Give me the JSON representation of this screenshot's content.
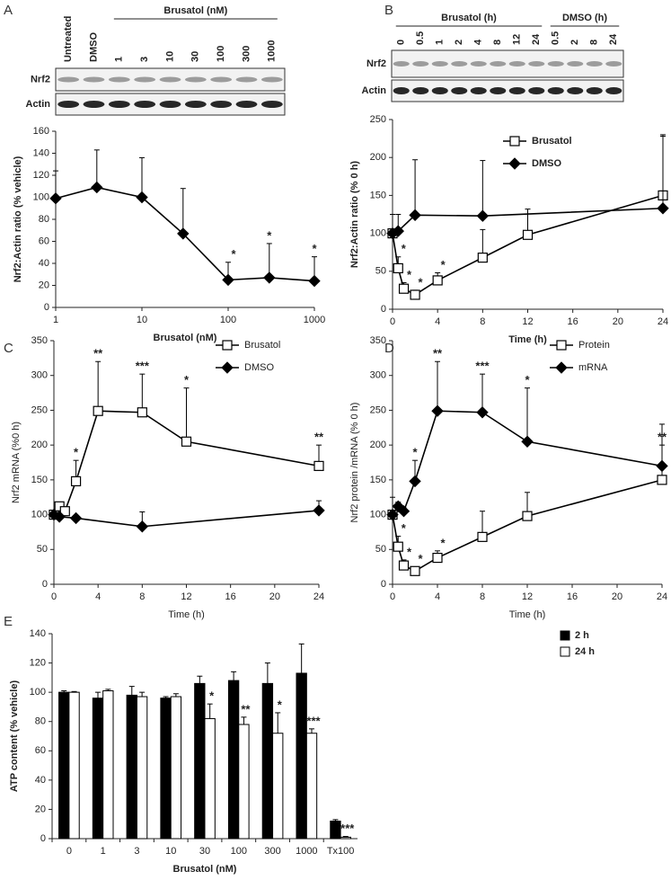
{
  "chart_data": [
    {
      "panel": "A",
      "type": "line",
      "blot": {
        "rows": [
          "Nrf2",
          "Actin"
        ],
        "lanes": [
          "Untreated",
          "DMSO"
        ],
        "lane_groups": [
          {
            "label": "Brusatol (nM)",
            "lanes": [
              "1",
              "3",
              "10",
              "30",
              "100",
              "300",
              "1000"
            ]
          }
        ]
      },
      "x_label": "Brusatol (nM)",
      "y_label": "Nrf2:Actin ratio (% vehicle)",
      "xscale": "log",
      "xlim": [
        1,
        1000
      ],
      "xticks": [
        1,
        10,
        100,
        1000
      ],
      "ylim": [
        0,
        160
      ],
      "yticks": [
        0,
        20,
        40,
        60,
        80,
        100,
        120,
        140,
        160
      ],
      "series": [
        {
          "color": "#000000",
          "marker": "diamond",
          "marker_fill": "#000000",
          "x": [
            1,
            3,
            10,
            30,
            100,
            300,
            1000
          ],
          "values": [
            99,
            109,
            100,
            67,
            25,
            27,
            24
          ],
          "errors": [
            25,
            34,
            36,
            41,
            16,
            31,
            22
          ],
          "significance": [
            null,
            null,
            null,
            null,
            "*",
            "*",
            "*"
          ]
        }
      ]
    },
    {
      "panel": "B",
      "type": "line",
      "blot": {
        "rows": [
          "Nrf2",
          "Actin"
        ],
        "lanes": [],
        "lane_groups": [
          {
            "label": "Brusatol (h)",
            "lanes": [
              "0",
              "0.5",
              "1",
              "2",
              "4",
              "8",
              "12",
              "24"
            ]
          },
          {
            "label": "DMSO (h)",
            "lanes": [
              "0.5",
              "2",
              "8",
              "24"
            ]
          }
        ]
      },
      "x_label": "Time (h)",
      "y_label": "Nrf2:Actin ratio (% 0 h)",
      "xlim": [
        0,
        24
      ],
      "xticks": [
        0,
        4,
        8,
        12,
        16,
        20,
        24
      ],
      "ylim": [
        0,
        250
      ],
      "yticks": [
        0,
        50,
        100,
        150,
        200,
        250
      ],
      "legend": "upper right",
      "series": [
        {
          "name": "Brusatol",
          "color": "#000000",
          "marker": "square",
          "marker_fill": "#ffffff",
          "x": [
            0,
            0.5,
            1,
            2,
            4,
            8,
            12,
            24
          ],
          "values": [
            100,
            54,
            27,
            19,
            38,
            68,
            98,
            150
          ],
          "errors": [
            25,
            15,
            8,
            6,
            10,
            37,
            34,
            80
          ],
          "significance": [
            null,
            "*",
            "*",
            "*",
            "*",
            null,
            null,
            null
          ]
        },
        {
          "name": "DMSO",
          "color": "#000000",
          "marker": "diamond",
          "marker_fill": "#000000",
          "x": [
            0,
            0.5,
            2,
            8,
            24
          ],
          "values": [
            100,
            103,
            124,
            123,
            133
          ],
          "errors": [
            25,
            22,
            73,
            73,
            95
          ],
          "significance": [
            null,
            null,
            null,
            null,
            null
          ]
        }
      ]
    },
    {
      "panel": "C",
      "type": "line",
      "x_label": "Time (h)",
      "y_label": "Nrf2 mRNA (%0 h)",
      "xlim": [
        0,
        24
      ],
      "xticks": [
        0,
        4,
        8,
        12,
        16,
        20,
        24
      ],
      "ylim": [
        0,
        350
      ],
      "yticks": [
        0,
        50,
        100,
        150,
        200,
        250,
        300,
        350
      ],
      "legend": "upper right",
      "series": [
        {
          "name": "Brusatol",
          "color": "#000000",
          "marker": "square",
          "marker_fill": "#ffffff",
          "x": [
            0,
            0.5,
            1,
            2,
            4,
            8,
            12,
            24
          ],
          "values": [
            100,
            112,
            105,
            148,
            249,
            247,
            205,
            170
          ],
          "errors": [
            5,
            6,
            5,
            30,
            71,
            55,
            77,
            30
          ],
          "significance": [
            null,
            null,
            null,
            "*",
            "**",
            "***",
            "*",
            "**"
          ]
        },
        {
          "name": "DMSO",
          "color": "#000000",
          "marker": "diamond",
          "marker_fill": "#000000",
          "x": [
            0,
            0.5,
            2,
            8,
            24
          ],
          "values": [
            100,
            97,
            95,
            83,
            106
          ],
          "errors": [
            5,
            4,
            4,
            21,
            14
          ],
          "significance": [
            null,
            null,
            null,
            null,
            null
          ]
        }
      ]
    },
    {
      "panel": "D",
      "type": "line",
      "x_label": "Time (h)",
      "y_label": "Nrf2 protein /mRNA (% 0 h)",
      "xlim": [
        0,
        24
      ],
      "xticks": [
        0,
        4,
        8,
        12,
        16,
        20,
        24
      ],
      "ylim": [
        0,
        350
      ],
      "yticks": [
        0,
        50,
        100,
        150,
        200,
        250,
        300,
        350
      ],
      "legend": "upper right",
      "series": [
        {
          "name": "Protein",
          "color": "#000000",
          "marker": "square",
          "marker_fill": "#ffffff",
          "x": [
            0,
            0.5,
            1,
            2,
            4,
            8,
            12,
            24
          ],
          "values": [
            100,
            54,
            27,
            19,
            38,
            68,
            98,
            150
          ],
          "errors": [
            25,
            15,
            8,
            6,
            10,
            37,
            34,
            80
          ],
          "significance": [
            null,
            "*",
            "*",
            "*",
            "*",
            null,
            null,
            null
          ]
        },
        {
          "name": "mRNA",
          "color": "#000000",
          "marker": "diamond",
          "marker_fill": "#000000",
          "x": [
            0,
            0.5,
            1,
            2,
            4,
            8,
            12,
            24
          ],
          "values": [
            100,
            112,
            105,
            148,
            249,
            247,
            205,
            170
          ],
          "errors": [
            5,
            6,
            5,
            30,
            71,
            55,
            77,
            30
          ],
          "significance": [
            null,
            null,
            null,
            "*",
            "**",
            "***",
            "*",
            "**"
          ]
        }
      ]
    },
    {
      "panel": "E",
      "type": "bar",
      "x_label": "Brusatol (nM)",
      "y_label": "ATP content (% vehicle)",
      "categories": [
        "0",
        "1",
        "3",
        "10",
        "30",
        "100",
        "300",
        "1000",
        "Tx100"
      ],
      "ylim": [
        0,
        140
      ],
      "yticks": [
        0,
        20,
        40,
        60,
        80,
        100,
        120,
        140
      ],
      "legend": "right",
      "series": [
        {
          "name": "2 h",
          "color": "#000000",
          "values": [
            100,
            96,
            98,
            96,
            106,
            108,
            106,
            113,
            12
          ],
          "errors": [
            1,
            4,
            6,
            1,
            5,
            6,
            14,
            20,
            1
          ],
          "significance": [
            null,
            null,
            null,
            null,
            null,
            null,
            null,
            null,
            null
          ]
        },
        {
          "name": "24 h",
          "color": "#ffffff",
          "values": [
            100,
            101,
            97,
            97,
            82,
            78,
            72,
            72,
            1
          ],
          "errors": [
            0.5,
            1,
            3,
            2,
            10,
            5,
            14,
            3,
            0.5
          ],
          "significance": [
            null,
            null,
            null,
            null,
            "*",
            "**",
            "*",
            "***",
            "***"
          ]
        }
      ]
    }
  ]
}
